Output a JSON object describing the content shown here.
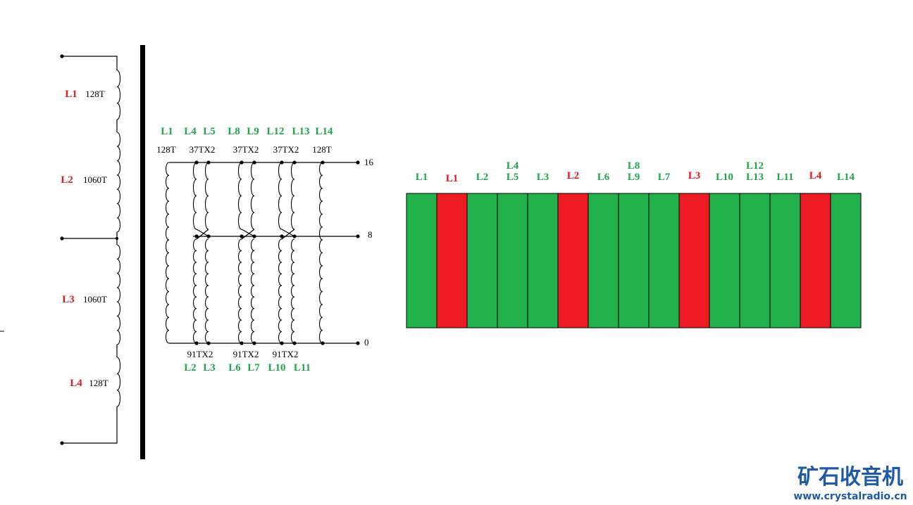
{
  "colors": {
    "red": "#e0191f",
    "green": "#1fa64a",
    "block_green": "#22b14c",
    "block_red": "#ed1c24",
    "watermark": "#1f5aa8"
  },
  "primary": {
    "coils": [
      {
        "label": "L1",
        "turns": "128T"
      },
      {
        "label": "L2",
        "turns": "1060T"
      },
      {
        "label": "L3",
        "turns": "1060T"
      },
      {
        "label": "L4",
        "turns": "128T"
      }
    ]
  },
  "secondary": {
    "top_groups": [
      {
        "labels": [
          "L1"
        ],
        "turns": "128T"
      },
      {
        "labels": [
          "L4",
          "L5"
        ],
        "turns": "37TX2"
      },
      {
        "labels": [
          "L8",
          "L9"
        ],
        "turns": "37TX2"
      },
      {
        "labels": [
          "L12",
          "L13"
        ],
        "turns": "37TX2"
      },
      {
        "labels": [
          "L14"
        ],
        "turns": "128T"
      }
    ],
    "bottom_groups": [
      {
        "labels": [
          "L2",
          "L3"
        ],
        "turns": "91TX2"
      },
      {
        "labels": [
          "L6",
          "L7"
        ],
        "turns": "91TX2"
      },
      {
        "labels": [
          "L10",
          "L11"
        ],
        "turns": "91TX2"
      }
    ],
    "taps": [
      "16",
      "8",
      "0"
    ]
  },
  "winding_order": {
    "layers": [
      {
        "labels": [
          "L1"
        ],
        "kind": "secondary"
      },
      {
        "labels": [
          "L1"
        ],
        "kind": "primary"
      },
      {
        "labels": [
          "L2"
        ],
        "kind": "secondary"
      },
      {
        "labels": [
          "L4",
          "L5"
        ],
        "kind": "secondary"
      },
      {
        "labels": [
          "L3"
        ],
        "kind": "secondary"
      },
      {
        "labels": [
          "L2"
        ],
        "kind": "primary"
      },
      {
        "labels": [
          "L6"
        ],
        "kind": "secondary"
      },
      {
        "labels": [
          "L8",
          "L9"
        ],
        "kind": "secondary"
      },
      {
        "labels": [
          "L7"
        ],
        "kind": "secondary"
      },
      {
        "labels": [
          "L3"
        ],
        "kind": "primary"
      },
      {
        "labels": [
          "L10"
        ],
        "kind": "secondary"
      },
      {
        "labels": [
          "L12",
          "L13"
        ],
        "kind": "secondary"
      },
      {
        "labels": [
          "L11"
        ],
        "kind": "secondary"
      },
      {
        "labels": [
          "L4"
        ],
        "kind": "primary"
      },
      {
        "labels": [
          "L14"
        ],
        "kind": "secondary"
      }
    ]
  },
  "watermark": {
    "name": "矿石收音机",
    "url": "www.crystalradio.cn"
  }
}
